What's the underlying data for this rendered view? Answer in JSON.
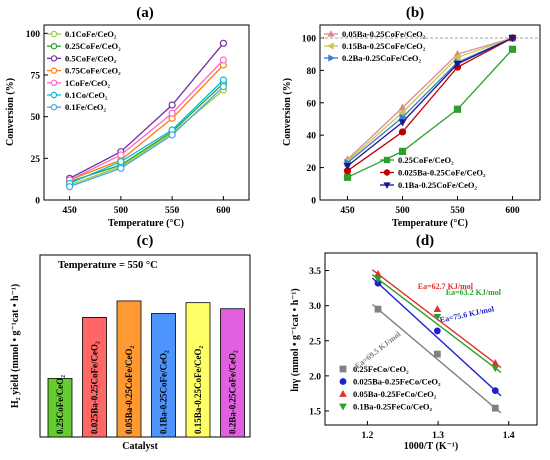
{
  "panels": [
    {
      "id": "a",
      "title": "(a)",
      "chart_data": {
        "type": "line",
        "xlabel": "Temperature (°C)",
        "ylabel": "Conversion (%)",
        "x": [
          450,
          500,
          550,
          600
        ],
        "xticks": [
          "450",
          "500",
          "550",
          "600"
        ],
        "yticks": [
          0,
          25,
          50,
          75,
          100
        ],
        "xlim": [
          425,
          625
        ],
        "ylim": [
          0,
          105
        ],
        "legend_position": "top-left",
        "series": [
          {
            "name": "0.1CoFe/CeO₂",
            "color": "#9acd32",
            "marker": "circle",
            "values": [
              9,
              20,
              40,
              66
            ]
          },
          {
            "name": "0.25CoFe/CeO₂",
            "color": "#2ca02c",
            "marker": "circle",
            "values": [
              11,
              21,
              41,
              70
            ]
          },
          {
            "name": "0.5CoFe/CeO₂",
            "color": "#7030a0",
            "marker": "circle",
            "values": [
              13,
              29,
              57,
              94
            ]
          },
          {
            "name": "0.75CoFe/CeO₂",
            "color": "#ff7f0e",
            "marker": "circle",
            "values": [
              12,
              24,
              49,
              81
            ]
          },
          {
            "name": "1CoFe/CeO₂",
            "color": "#ff66cc",
            "marker": "circle",
            "values": [
              12,
              27,
              52,
              84
            ]
          },
          {
            "name": "0.1Co/CeO₂",
            "color": "#00bcd4",
            "marker": "circle",
            "values": [
              10,
              23,
              42,
              72
            ]
          },
          {
            "name": "0.1Fe/CeO₂",
            "color": "#4fa3e0",
            "marker": "circle",
            "values": [
              8,
              19,
              39,
              68
            ]
          }
        ]
      }
    },
    {
      "id": "b",
      "title": "(b)",
      "chart_data": {
        "type": "line",
        "xlabel": "Temperature (°C)",
        "ylabel": "Conversion (%)",
        "x": [
          450,
          500,
          550,
          600
        ],
        "xticks": [
          "450",
          "500",
          "550",
          "600"
        ],
        "yticks": [
          0,
          20,
          40,
          60,
          80,
          100
        ],
        "xlim": [
          425,
          625
        ],
        "ylim": [
          0,
          108
        ],
        "reference_line": 100,
        "legend_top": [
          {
            "name": "0.05Ba-0.25CoFe/CeO₂",
            "color": "#d98c8c",
            "marker": "up-triangle",
            "values": [
              25,
              57,
              90,
              100
            ]
          },
          {
            "name": "0.15Ba-0.25CoFe/CeO₂",
            "color": "#c8c84a",
            "marker": "left-triangle",
            "values": [
              24,
              54,
              88,
              100
            ]
          },
          {
            "name": "0.2Ba-0.25CoFe/CeO₂",
            "color": "#3a7bd5",
            "marker": "right-triangle",
            "values": [
              23,
              51,
              85,
              100
            ]
          }
        ],
        "legend_bottom": [
          {
            "name": "0.25CoFe/CeO₂",
            "color": "#2ca02c",
            "marker": "square",
            "values": [
              14,
              30,
              56,
              93
            ]
          },
          {
            "name": "0.025Ba-0.25CoFe/CeO₂",
            "color": "#c00000",
            "marker": "circle",
            "values": [
              18,
              42,
              82,
              100
            ]
          },
          {
            "name": "0.1Ba-0.25CoFe/CeO₂",
            "color": "#1a1a8c",
            "marker": "down-triangle",
            "values": [
              21,
              48,
              84,
              100
            ]
          }
        ]
      }
    },
    {
      "id": "c",
      "title": "(c)",
      "chart_data": {
        "type": "bar",
        "xlabel": "Catalyst",
        "ylabel": "H₂ yield (mmol • g⁻¹cat • h⁻¹)",
        "annotation": "Temperature = 550 °C",
        "ylim": [
          0,
          42
        ],
        "categories": [
          "0.25CoFe/CeO₂",
          "0.025Ba-0.25CoFe/CeO₂",
          "0.05Ba-0.25CoFe/CeO₂",
          "0.1Ba-0.25CoFe/CeO₂",
          "0.15Ba-0.25CoFe/CeO₂",
          "0.2Ba-0.25CoFe/CeO₂"
        ],
        "values": [
          13.5,
          27.6,
          31.4,
          28.5,
          31.0,
          29.6
        ],
        "colors": [
          "#66cc33",
          "#ff6666",
          "#ff9933",
          "#4d94ff",
          "#ffff66",
          "#e060e0"
        ]
      }
    },
    {
      "id": "d",
      "title": "(d)",
      "chart_data": {
        "type": "scatter",
        "xlabel": "1000/T (K⁻¹)",
        "ylabel": "lnγ (mmol • g⁻¹cat • h⁻¹)",
        "xticks": [
          "1.2",
          "1.3",
          "1.4"
        ],
        "xtick_values": [
          1.2,
          1.3,
          1.4
        ],
        "yticks": [
          "1.5",
          "2.0",
          "2.5",
          "3.0",
          "3.5"
        ],
        "ytick_values": [
          1.5,
          2.0,
          2.5,
          3.0,
          3.5
        ],
        "xlim": [
          1.14,
          1.44
        ],
        "ylim": [
          1.3,
          3.75
        ],
        "legend_position": "bottom-left",
        "series": [
          {
            "name": "0.25FeCo/CeO₂",
            "color": "#808080",
            "marker": "square",
            "x": [
              1.215,
              1.299,
              1.381
            ],
            "y": [
              2.95,
              2.31,
              1.54
            ],
            "ea": "Ea=69.5 KJ/mol"
          },
          {
            "name": "0.025Ba-0.25FeCo/CeO₂",
            "color": "#1f1fcc",
            "marker": "circle",
            "x": [
              1.215,
              1.299,
              1.381
            ],
            "y": [
              3.32,
              2.64,
              1.79
            ],
            "ea": "Ea=75.6 KJ/mol"
          },
          {
            "name": "0.05Ba-0.25FeCo/CeO₂",
            "color": "#e03030",
            "marker": "up-triangle",
            "x": [
              1.215,
              1.299,
              1.381
            ],
            "y": [
              3.45,
              2.95,
              2.18
            ],
            "ea": "Ea=62.7 KJ/mol"
          },
          {
            "name": "0.1Ba-0.25FeCo/CeO₂",
            "color": "#2ca02c",
            "marker": "down-triangle",
            "x": [
              1.215,
              1.299,
              1.381
            ],
            "y": [
              3.38,
              2.84,
              2.11
            ],
            "ea": "Ea=63.2 KJ/mol"
          }
        ]
      }
    }
  ]
}
